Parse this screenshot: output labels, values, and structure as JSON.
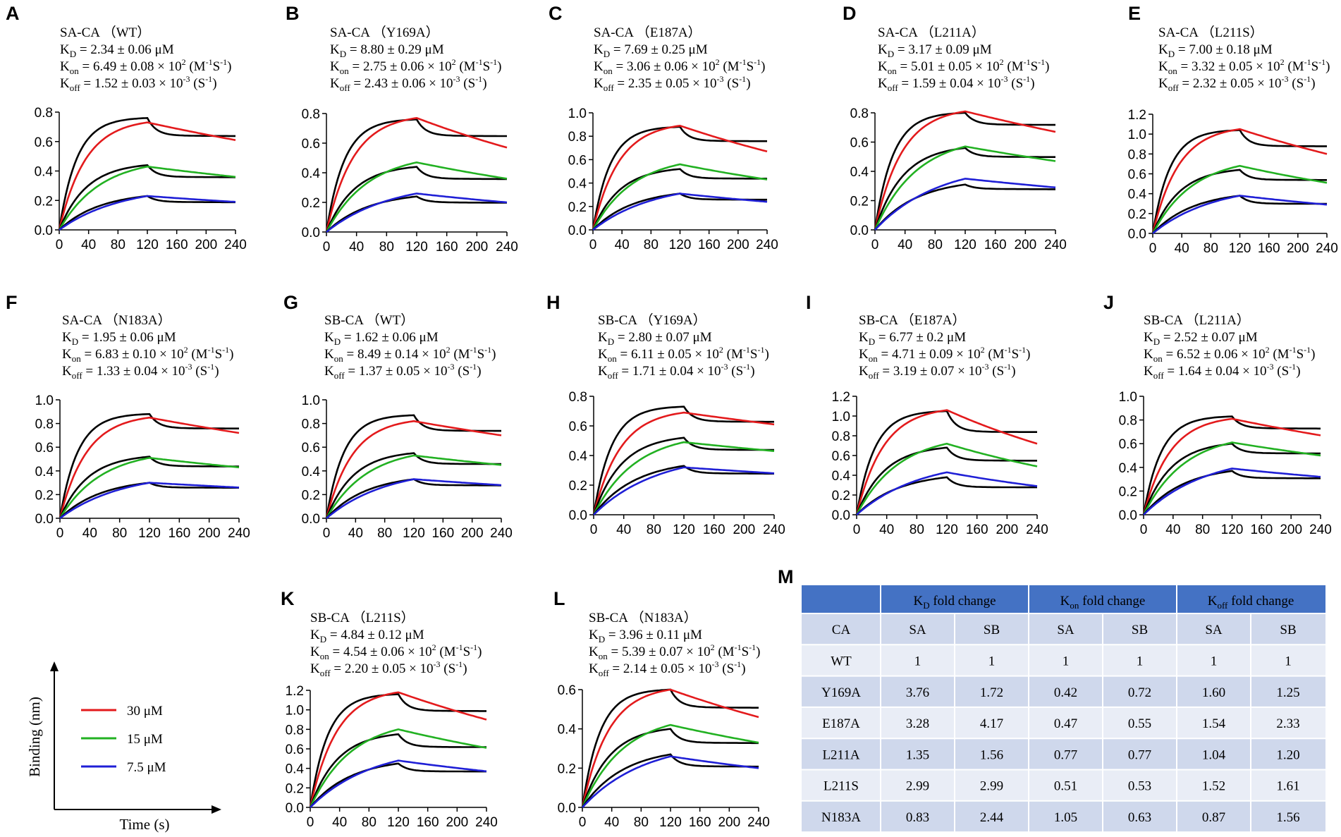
{
  "figure": {
    "xlabel": "Time (s)",
    "ylabel": "Binding (nm)"
  },
  "legend": [
    {
      "label": "30 μM",
      "color": "#e31a1c"
    },
    {
      "label": "15 μM",
      "color": "#22b122"
    },
    {
      "label": "7.5 μM",
      "color": "#1f1fd6"
    }
  ],
  "colors": {
    "raw": "#000000",
    "fit30": "#e31a1c",
    "fit15": "#22b122",
    "fit7_5": "#1f1fd6",
    "table_header": "#4472c4",
    "table_row_a": "#cfd8ec",
    "table_row_b": "#e9edf6"
  },
  "chart_data": [
    {
      "type": "line",
      "panel": "A",
      "title": "SA-CA （WT）",
      "kd": "2.34 ± 0.06 μM",
      "kon": "6.49 ± 0.08 × 10",
      "koff": "1.52 ± 0.03 × 10",
      "xlim": [
        0,
        240
      ],
      "xticks": [
        "0",
        "40",
        "80",
        "120",
        "160",
        "200",
        "240"
      ],
      "ylim": [
        0,
        0.8
      ],
      "yticks": [
        "0.0",
        "0.2",
        "0.4",
        "0.6",
        "0.8"
      ],
      "series": [
        {
          "name": "30 μM",
          "peak_raw": 0.76,
          "end_raw": 0.64,
          "peak_fit": 0.73,
          "end_fit": 0.61
        },
        {
          "name": "15 μM",
          "peak_raw": 0.44,
          "end_raw": 0.36,
          "peak_fit": 0.43,
          "end_fit": 0.36
        },
        {
          "name": "7.5 μM",
          "peak_raw": 0.23,
          "end_raw": 0.19,
          "peak_fit": 0.23,
          "end_fit": 0.19
        }
      ]
    },
    {
      "type": "line",
      "panel": "B",
      "title": "SA-CA （Y169A）",
      "kd": "8.80 ± 0.29 μM",
      "kon": "2.75 ± 0.06 × 10",
      "koff": "2.43 ± 0.06 × 10",
      "xlim": [
        0,
        240
      ],
      "xticks": [
        "0",
        "40",
        "80",
        "120",
        "160",
        "200",
        "240"
      ],
      "ylim": [
        0,
        0.8
      ],
      "yticks": [
        "0.0",
        "0.2",
        "0.4",
        "0.6",
        "0.8"
      ],
      "series": [
        {
          "name": "30 μM",
          "peak_raw": 0.76,
          "end_raw": 0.65,
          "peak_fit": 0.77,
          "end_fit": 0.57
        },
        {
          "name": "15 μM",
          "peak_raw": 0.44,
          "end_raw": 0.36,
          "peak_fit": 0.47,
          "end_fit": 0.36
        },
        {
          "name": "7.5 μM",
          "peak_raw": 0.24,
          "end_raw": 0.2,
          "peak_fit": 0.26,
          "end_fit": 0.2
        }
      ]
    },
    {
      "type": "line",
      "panel": "C",
      "title": "SA-CA （E187A）",
      "kd": "7.69 ± 0.25 μM",
      "kon": "3.06 ± 0.06 × 10",
      "koff": "2.35 ± 0.05 × 10",
      "xlim": [
        0,
        240
      ],
      "xticks": [
        "0",
        "40",
        "80",
        "120",
        "160",
        "200",
        "240"
      ],
      "ylim": [
        0,
        1.0
      ],
      "yticks": [
        "0.0",
        "0.2",
        "0.4",
        "0.6",
        "0.8",
        "1.0"
      ],
      "series": [
        {
          "name": "30 μM",
          "peak_raw": 0.88,
          "end_raw": 0.76,
          "peak_fit": 0.89,
          "end_fit": 0.67
        },
        {
          "name": "15 μM",
          "peak_raw": 0.52,
          "end_raw": 0.44,
          "peak_fit": 0.56,
          "end_fit": 0.43
        },
        {
          "name": "7.5 μM",
          "peak_raw": 0.31,
          "end_raw": 0.26,
          "peak_fit": 0.31,
          "end_fit": 0.24
        }
      ]
    },
    {
      "type": "line",
      "panel": "D",
      "title": "SA-CA （L211A）",
      "kd": "3.17 ± 0.09 μM",
      "kon": "5.01 ± 0.05 × 10",
      "koff": "1.59 ± 0.04 × 10",
      "xlim": [
        0,
        240
      ],
      "xticks": [
        "0",
        "40",
        "80",
        "120",
        "160",
        "200",
        "240"
      ],
      "ylim": [
        0,
        0.8
      ],
      "yticks": [
        "0.0",
        "0.2",
        "0.4",
        "0.6",
        "0.8"
      ],
      "series": [
        {
          "name": "30 μM",
          "peak_raw": 0.8,
          "end_raw": 0.72,
          "peak_fit": 0.81,
          "end_fit": 0.67
        },
        {
          "name": "15 μM",
          "peak_raw": 0.56,
          "end_raw": 0.5,
          "peak_fit": 0.57,
          "end_fit": 0.47
        },
        {
          "name": "7.5 μM",
          "peak_raw": 0.31,
          "end_raw": 0.28,
          "peak_fit": 0.35,
          "end_fit": 0.29
        }
      ]
    },
    {
      "type": "line",
      "panel": "E",
      "title": "SA-CA （L211S）",
      "kd": "7.00 ± 0.18 μM",
      "kon": "3.32 ± 0.05 × 10",
      "koff": "2.32 ± 0.05 × 10",
      "xlim": [
        0,
        240
      ],
      "xticks": [
        "0",
        "40",
        "80",
        "120",
        "160",
        "200",
        "240"
      ],
      "ylim": [
        0,
        1.2
      ],
      "yticks": [
        "0.0",
        "0.2",
        "0.4",
        "0.6",
        "0.8",
        "1.0",
        "1.2"
      ],
      "series": [
        {
          "name": "30 μM",
          "peak_raw": 1.04,
          "end_raw": 0.88,
          "peak_fit": 1.05,
          "end_fit": 0.8
        },
        {
          "name": "15 μM",
          "peak_raw": 0.64,
          "end_raw": 0.54,
          "peak_fit": 0.68,
          "end_fit": 0.51
        },
        {
          "name": "7.5 μM",
          "peak_raw": 0.38,
          "end_raw": 0.3,
          "peak_fit": 0.38,
          "end_fit": 0.29
        }
      ]
    },
    {
      "type": "line",
      "panel": "F",
      "title": "SA-CA （N183A）",
      "kd": "1.95 ± 0.06 μM",
      "kon": "6.83 ± 0.10 × 10",
      "koff": "1.33 ± 0.04 × 10",
      "xlim": [
        0,
        240
      ],
      "xticks": [
        "0",
        "40",
        "80",
        "120",
        "160",
        "200",
        "240"
      ],
      "ylim": [
        0,
        1.0
      ],
      "yticks": [
        "0.0",
        "0.2",
        "0.4",
        "0.6",
        "0.8",
        "1.0"
      ],
      "series": [
        {
          "name": "30 μM",
          "peak_raw": 0.88,
          "end_raw": 0.76,
          "peak_fit": 0.85,
          "end_fit": 0.72
        },
        {
          "name": "15 μM",
          "peak_raw": 0.52,
          "end_raw": 0.44,
          "peak_fit": 0.51,
          "end_fit": 0.43
        },
        {
          "name": "7.5 μM",
          "peak_raw": 0.3,
          "end_raw": 0.26,
          "peak_fit": 0.3,
          "end_fit": 0.26
        }
      ]
    },
    {
      "type": "line",
      "panel": "G",
      "title": "SB-CA （WT）",
      "kd": "1.62 ± 0.06 μM",
      "kon": "8.49 ± 0.14 × 10",
      "koff": "1.37 ± 0.05 × 10",
      "xlim": [
        0,
        240
      ],
      "xticks": [
        "0",
        "40",
        "80",
        "120",
        "160",
        "200",
        "240"
      ],
      "ylim": [
        0,
        1.0
      ],
      "yticks": [
        "0.0",
        "0.2",
        "0.4",
        "0.6",
        "0.8",
        "1.0"
      ],
      "series": [
        {
          "name": "30 μM",
          "peak_raw": 0.87,
          "end_raw": 0.74,
          "peak_fit": 0.82,
          "end_fit": 0.7
        },
        {
          "name": "15 μM",
          "peak_raw": 0.55,
          "end_raw": 0.46,
          "peak_fit": 0.53,
          "end_fit": 0.45
        },
        {
          "name": "7.5 μM",
          "peak_raw": 0.33,
          "end_raw": 0.28,
          "peak_fit": 0.33,
          "end_fit": 0.28
        }
      ]
    },
    {
      "type": "line",
      "panel": "H",
      "title": "SB-CA （Y169A）",
      "kd": "2.80 ± 0.07 μM",
      "kon": "6.11 ± 0.05 × 10",
      "koff": "1.71 ± 0.04 × 10",
      "xlim": [
        0,
        240
      ],
      "xticks": [
        "0",
        "40",
        "80",
        "120",
        "160",
        "200",
        "240"
      ],
      "ylim": [
        0,
        0.8
      ],
      "yticks": [
        "0.0",
        "0.2",
        "0.4",
        "0.6",
        "0.8"
      ],
      "series": [
        {
          "name": "30 μM",
          "peak_raw": 0.73,
          "end_raw": 0.63,
          "peak_fit": 0.69,
          "end_fit": 0.61
        },
        {
          "name": "15 μM",
          "peak_raw": 0.52,
          "end_raw": 0.44,
          "peak_fit": 0.49,
          "end_fit": 0.43
        },
        {
          "name": "7.5 μM",
          "peak_raw": 0.33,
          "end_raw": 0.28,
          "peak_fit": 0.32,
          "end_fit": 0.28
        }
      ]
    },
    {
      "type": "line",
      "panel": "I",
      "title": "SB-CA （E187A）",
      "kd": "6.77 ± 0.2 μM",
      "kon": "4.71 ± 0.09 × 10",
      "koff": "3.19 ± 0.07 × 10",
      "xlim": [
        0,
        240
      ],
      "xticks": [
        "0",
        "40",
        "80",
        "120",
        "160",
        "200",
        "240"
      ],
      "ylim": [
        0,
        1.2
      ],
      "yticks": [
        "0.0",
        "0.2",
        "0.4",
        "0.6",
        "0.8",
        "1.0",
        "1.2"
      ],
      "series": [
        {
          "name": "30 μM",
          "peak_raw": 1.05,
          "end_raw": 0.84,
          "peak_fit": 1.06,
          "end_fit": 0.72
        },
        {
          "name": "15 μM",
          "peak_raw": 0.68,
          "end_raw": 0.55,
          "peak_fit": 0.72,
          "end_fit": 0.49
        },
        {
          "name": "7.5 μM",
          "peak_raw": 0.38,
          "end_raw": 0.28,
          "peak_fit": 0.43,
          "end_fit": 0.29
        }
      ]
    },
    {
      "type": "line",
      "panel": "J",
      "title": "SB-CA （L211A）",
      "kd": "2.52 ± 0.07 μM",
      "kon": "6.52 ± 0.06 × 10",
      "koff": "1.64 ± 0.04 × 10",
      "xlim": [
        0,
        240
      ],
      "xticks": [
        "0",
        "40",
        "80",
        "120",
        "160",
        "200",
        "240"
      ],
      "ylim": [
        0,
        1.0
      ],
      "yticks": [
        "0.0",
        "0.2",
        "0.4",
        "0.6",
        "0.8",
        "1.0"
      ],
      "series": [
        {
          "name": "30 μM",
          "peak_raw": 0.83,
          "end_raw": 0.73,
          "peak_fit": 0.81,
          "end_fit": 0.67
        },
        {
          "name": "15 μM",
          "peak_raw": 0.6,
          "end_raw": 0.52,
          "peak_fit": 0.61,
          "end_fit": 0.5
        },
        {
          "name": "7.5 μM",
          "peak_raw": 0.37,
          "end_raw": 0.31,
          "peak_fit": 0.39,
          "end_fit": 0.32
        }
      ]
    },
    {
      "type": "line",
      "panel": "K",
      "title": "SB-CA （L211S）",
      "kd": "4.84 ± 0.12 μM",
      "kon": "4.54 ± 0.06 × 10",
      "koff": "2.20 ± 0.05 × 10",
      "xlim": [
        0,
        240
      ],
      "xticks": [
        "0",
        "40",
        "80",
        "120",
        "160",
        "200",
        "240"
      ],
      "ylim": [
        0,
        1.2
      ],
      "yticks": [
        "0.0",
        "0.2",
        "0.4",
        "0.6",
        "0.8",
        "1.0",
        "1.2"
      ],
      "series": [
        {
          "name": "30 μM",
          "peak_raw": 1.16,
          "end_raw": 0.99,
          "peak_fit": 1.18,
          "end_fit": 0.9
        },
        {
          "name": "15 μM",
          "peak_raw": 0.75,
          "end_raw": 0.62,
          "peak_fit": 0.8,
          "end_fit": 0.61
        },
        {
          "name": "7.5 μM",
          "peak_raw": 0.45,
          "end_raw": 0.37,
          "peak_fit": 0.48,
          "end_fit": 0.37
        }
      ]
    },
    {
      "type": "line",
      "panel": "L",
      "title": "SB-CA （N183A）",
      "kd": "3.96 ± 0.11 μM",
      "kon": "5.39 ± 0.07 × 10",
      "koff": "2.14 ± 0.05 × 10",
      "xlim": [
        0,
        240
      ],
      "xticks": [
        "0",
        "40",
        "80",
        "120",
        "160",
        "200",
        "240"
      ],
      "ylim": [
        0,
        0.6
      ],
      "yticks": [
        "0.0",
        "0.2",
        "0.4",
        "0.6"
      ],
      "series": [
        {
          "name": "30 μM",
          "peak_raw": 0.6,
          "end_raw": 0.51,
          "peak_fit": 0.6,
          "end_fit": 0.46
        },
        {
          "name": "15 μM",
          "peak_raw": 0.4,
          "end_raw": 0.33,
          "peak_fit": 0.42,
          "end_fit": 0.33
        },
        {
          "name": "7.5 μM",
          "peak_raw": 0.27,
          "end_raw": 0.21,
          "peak_fit": 0.26,
          "end_fit": 0.2
        }
      ]
    },
    {
      "type": "table",
      "panel": "M",
      "groups": [
        "fold change",
        "fold change",
        "fold change"
      ],
      "subheaders": [
        "CA",
        "SA",
        "SB",
        "SA",
        "SB",
        "SA",
        "SB"
      ],
      "rows": [
        [
          "WT",
          "1",
          "1",
          "1",
          "1",
          "1",
          "1"
        ],
        [
          "Y169A",
          "3.76",
          "1.72",
          "0.42",
          "0.72",
          "1.60",
          "1.25"
        ],
        [
          "E187A",
          "3.28",
          "4.17",
          "0.47",
          "0.55",
          "1.54",
          "2.33"
        ],
        [
          "L211A",
          "1.35",
          "1.56",
          "0.77",
          "0.77",
          "1.04",
          "1.20"
        ],
        [
          "L211S",
          "2.99",
          "2.99",
          "0.51",
          "0.53",
          "1.52",
          "1.61"
        ],
        [
          "N183A",
          "0.83",
          "2.44",
          "1.05",
          "0.63",
          "0.87",
          "1.56"
        ]
      ]
    }
  ]
}
